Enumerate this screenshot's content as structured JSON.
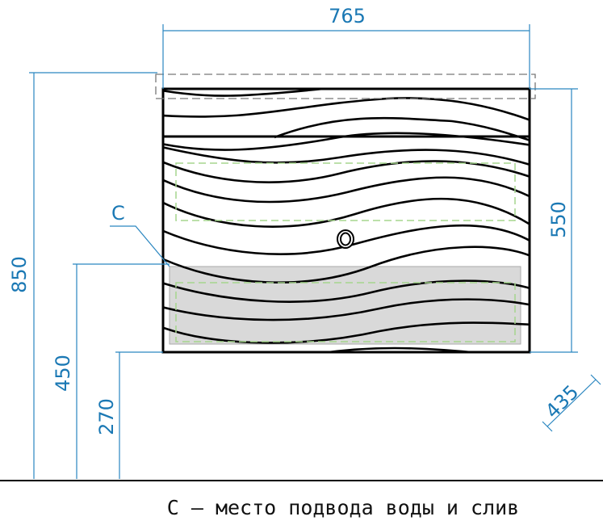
{
  "drawing": {
    "dimensions": {
      "width": "765",
      "total_height": "850",
      "cabinet_height": "550",
      "connection_height": "450",
      "bottom_height": "270",
      "depth": "435"
    },
    "marker_label": "C",
    "caption": "C – место подвода воды и слив",
    "colors": {
      "dimension_lines": "#2a86c0",
      "outline": "#000000",
      "connection_zone": "#d9d9d9",
      "drawer_outline": "#9fd08a"
    }
  }
}
